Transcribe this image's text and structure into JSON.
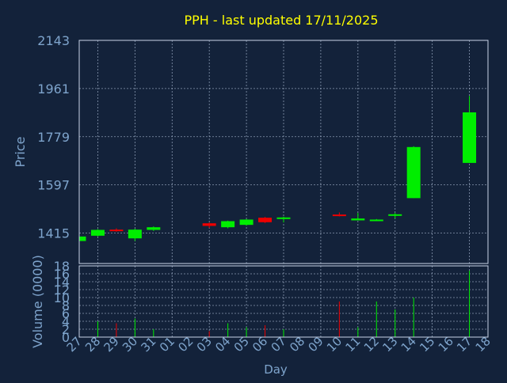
{
  "chart_data": {
    "type": "candlestick",
    "title": "PPH - last updated 17/11/2025",
    "xlabel": "Day",
    "ylabel_price": "Price",
    "ylabel_volume": "Volume (0000)",
    "x_tick_labels": [
      "27",
      "28",
      "29",
      "30",
      "31",
      "01",
      "02",
      "03",
      "04",
      "05",
      "06",
      "07",
      "08",
      "09",
      "10",
      "11",
      "12",
      "13",
      "14",
      "15",
      "16",
      "17",
      "18"
    ],
    "price_axis": {
      "range": [
        1300,
        2143
      ],
      "ticks": [
        2143,
        1961,
        1779,
        1597,
        1415
      ]
    },
    "volume_axis": {
      "range": [
        0,
        18
      ],
      "ticks": [
        18,
        16,
        14,
        12,
        10,
        8,
        6,
        4,
        2,
        0
      ]
    },
    "grid": true,
    "colors": {
      "up": "#00ee00",
      "down": "#ee0000",
      "text": "#7ea4cc",
      "title": "#ffff00",
      "grid": "#b0c0d8",
      "background": "#13223a",
      "plot_border": "#c8d4e8"
    },
    "candles": [
      {
        "day": "27",
        "open": 1385,
        "high": 1403,
        "low": 1385,
        "close": 1402,
        "volume": 0
      },
      {
        "day": "28",
        "open": 1405,
        "high": 1430,
        "low": 1402,
        "close": 1427,
        "volume": 4
      },
      {
        "day": "29",
        "open": 1428,
        "high": 1433,
        "low": 1420,
        "close": 1424,
        "volume": 3.5
      },
      {
        "day": "30",
        "open": 1395,
        "high": 1432,
        "low": 1385,
        "close": 1428,
        "volume": 4.7
      },
      {
        "day": "31",
        "open": 1427,
        "high": 1440,
        "low": 1423,
        "close": 1437,
        "volume": 2
      },
      {
        "day": "03",
        "open": 1452,
        "high": 1455,
        "low": 1435,
        "close": 1442,
        "volume": 1.5
      },
      {
        "day": "04",
        "open": 1437,
        "high": 1462,
        "low": 1433,
        "close": 1460,
        "volume": 3.5
      },
      {
        "day": "05",
        "open": 1446,
        "high": 1468,
        "low": 1443,
        "close": 1466,
        "volume": 2.5
      },
      {
        "day": "06",
        "open": 1473,
        "high": 1476,
        "low": 1453,
        "close": 1456,
        "volume": 3
      },
      {
        "day": "07",
        "open": 1470,
        "high": 1477,
        "low": 1455,
        "close": 1474,
        "volume": 2
      },
      {
        "day": "10",
        "open": 1485,
        "high": 1493,
        "low": 1478,
        "close": 1482,
        "volume": 9
      },
      {
        "day": "11",
        "open": 1463,
        "high": 1491,
        "low": 1463,
        "close": 1470,
        "volume": 2.5
      },
      {
        "day": "12",
        "open": 1463,
        "high": 1468,
        "low": 1460,
        "close": 1466,
        "volume": 9
      },
      {
        "day": "13",
        "open": 1481,
        "high": 1491,
        "low": 1470,
        "close": 1486,
        "volume": 7
      },
      {
        "day": "14",
        "open": 1547,
        "high": 1743,
        "low": 1547,
        "close": 1740,
        "volume": 10
      },
      {
        "day": "17",
        "open": 1680,
        "high": 1933,
        "low": 1680,
        "close": 1871,
        "volume": 16.8
      }
    ]
  }
}
